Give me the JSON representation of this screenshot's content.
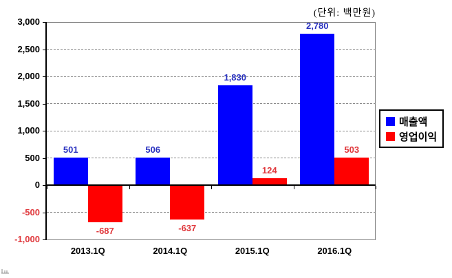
{
  "chart_data": {
    "type": "bar",
    "unit_label": "(단위: 백만원)",
    "categories": [
      "2013.1Q",
      "2014.1Q",
      "2015.1Q",
      "2016.1Q"
    ],
    "series": [
      {
        "name": "매출액",
        "slug": "sales",
        "color": "#0000FF",
        "label_color": "#2B33C0",
        "values": [
          501,
          506,
          1830,
          2780
        ],
        "value_labels": [
          "501",
          "506",
          "1,830",
          "2,780"
        ]
      },
      {
        "name": "영업이익",
        "slug": "operating-profit",
        "color": "#FF0000",
        "label_color": "#E0393D",
        "values": [
          -687,
          -637,
          124,
          503
        ],
        "value_labels": [
          "-687",
          "-637",
          "124",
          "503"
        ]
      }
    ],
    "yaxis": {
      "min": -1000,
      "max": 3000,
      "interval": 500,
      "tick_values": [
        3000,
        2500,
        2000,
        1500,
        1000,
        500,
        0,
        -500,
        -1000
      ],
      "tick_labels": [
        "3,000",
        "2,500",
        "2,000",
        "1,500",
        "1,000",
        "500",
        "0",
        "-500",
        "-1,000"
      ],
      "negative_label_color": "#E0393D"
    },
    "grid": {
      "style": "dashed",
      "color": "#898989",
      "orientation": "horizontal"
    },
    "legend": {
      "position": "right"
    },
    "frame_color": "#7F7F7F"
  }
}
